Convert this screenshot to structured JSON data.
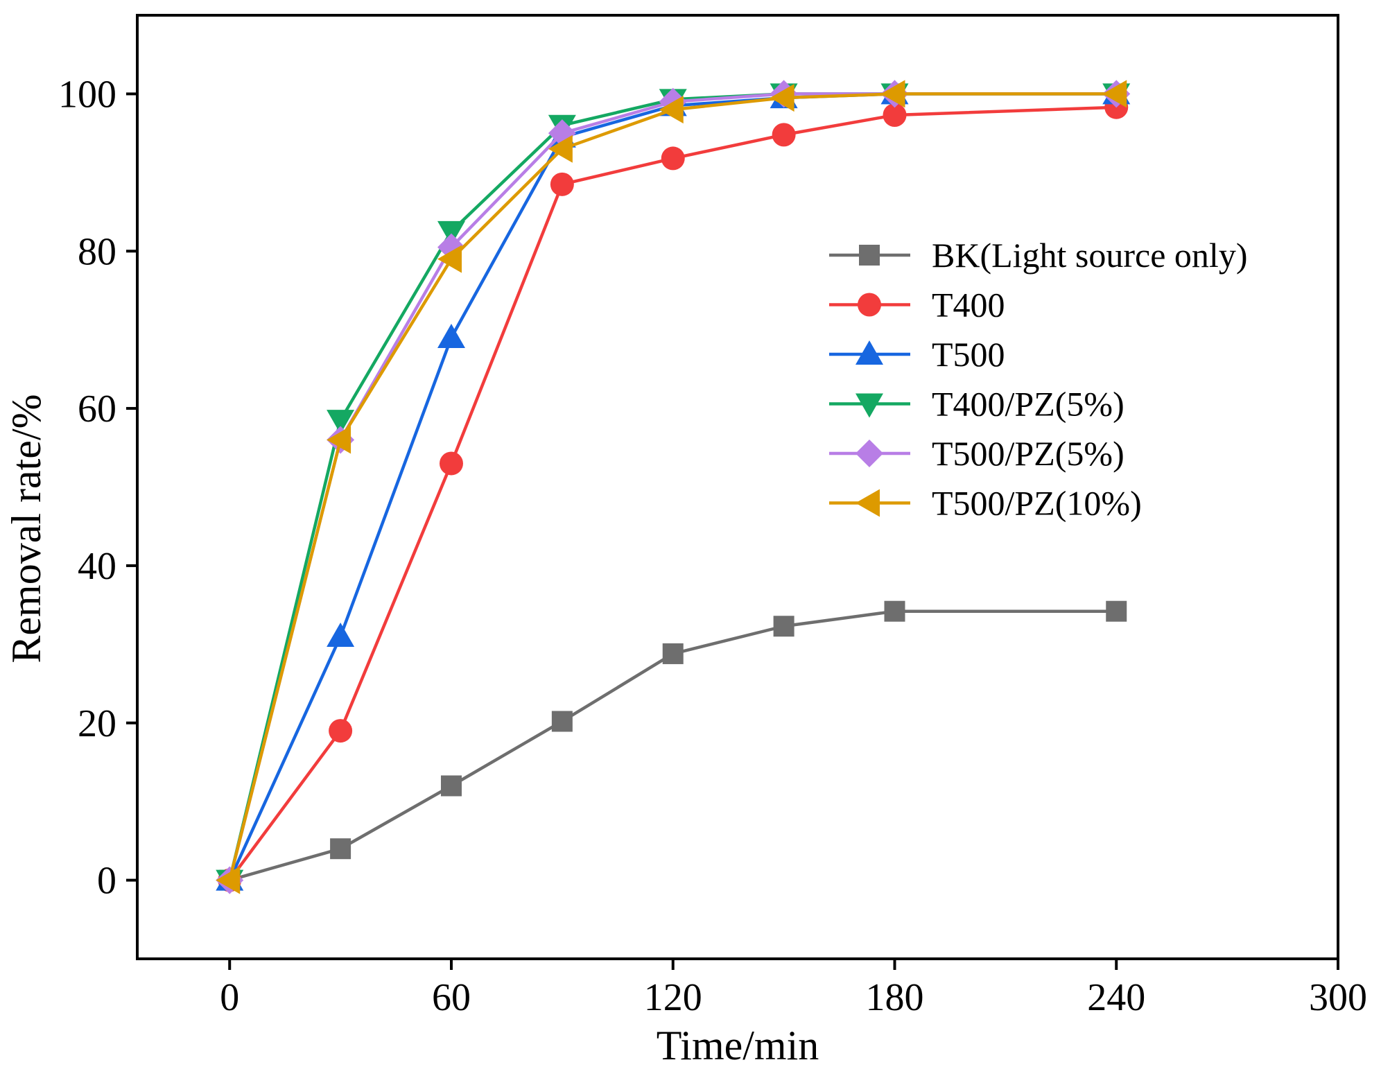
{
  "chart_data": {
    "type": "line",
    "title": "",
    "xlabel": "Time/min",
    "ylabel": "Removal rate/%",
    "xlim": [
      -25,
      300
    ],
    "ylim": [
      -10,
      110
    ],
    "xticks": [
      0,
      60,
      120,
      180,
      240,
      300
    ],
    "yticks": [
      0,
      20,
      40,
      60,
      80,
      100
    ],
    "grid": false,
    "legend_position": "right",
    "x": [
      0,
      30,
      60,
      90,
      120,
      150,
      180,
      240
    ],
    "series": [
      {
        "name": "BK(Light source only)",
        "color": "#6e6e6e",
        "marker": "square",
        "values": [
          0,
          4,
          12,
          20.2,
          28.8,
          32.3,
          34.2,
          34.2
        ]
      },
      {
        "name": "T400",
        "color": "#f23c3c",
        "marker": "circle",
        "values": [
          0,
          19,
          53,
          88.5,
          91.8,
          94.8,
          97.3,
          98.3
        ]
      },
      {
        "name": "T500",
        "color": "#1766e0",
        "marker": "triangle-up",
        "values": [
          0,
          31,
          69,
          94.5,
          98.5,
          99.5,
          100,
          100
        ]
      },
      {
        "name": "T400/PZ(5%)",
        "color": "#14a862",
        "marker": "triangle-down",
        "values": [
          0,
          58.5,
          82.5,
          96,
          99.3,
          100,
          100,
          100
        ]
      },
      {
        "name": "T500/PZ(5%)",
        "color": "#b87ee6",
        "marker": "diamond",
        "values": [
          0,
          56,
          80.5,
          95,
          99,
          100,
          100,
          100
        ]
      },
      {
        "name": "T500/PZ(10%)",
        "color": "#dd9a00",
        "marker": "triangle-left",
        "values": [
          0,
          56,
          79,
          93,
          98,
          99.5,
          100,
          100
        ]
      }
    ]
  }
}
